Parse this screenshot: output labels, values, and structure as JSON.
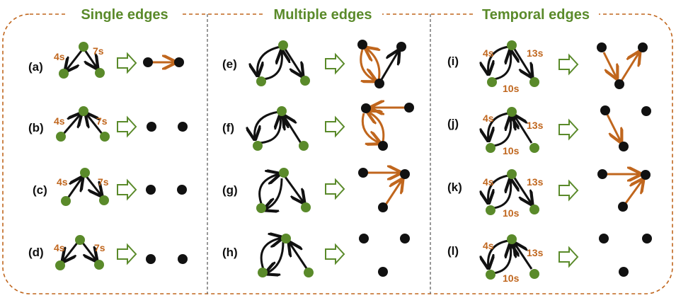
{
  "sections": [
    {
      "title": "Single edges"
    },
    {
      "title": "Multiple edges"
    },
    {
      "title": "Temporal edges"
    }
  ],
  "panels": [
    {
      "label": "(a)",
      "times": [
        "4s",
        "7s"
      ]
    },
    {
      "label": "(b)",
      "times": [
        "4s",
        "7s"
      ]
    },
    {
      "label": "(c)",
      "times": [
        "4s",
        "7s"
      ]
    },
    {
      "label": "(d)",
      "times": [
        "4s",
        "7s"
      ]
    },
    {
      "label": "(e)",
      "times": []
    },
    {
      "label": "(f)",
      "times": []
    },
    {
      "label": "(g)",
      "times": []
    },
    {
      "label": "(h)",
      "times": []
    },
    {
      "label": "(i)",
      "times": [
        "4s",
        "13s",
        "10s"
      ]
    },
    {
      "label": "(j)",
      "times": [
        "4s",
        "13s",
        "10s"
      ]
    },
    {
      "label": "(k)",
      "times": [
        "4s",
        "13s",
        "10s"
      ]
    },
    {
      "label": "(l)",
      "times": [
        "4s",
        "13s",
        "10s"
      ]
    }
  ],
  "colors": {
    "green": "#5a8a2a",
    "orange": "#c0661d",
    "black": "#111111",
    "frame": "#c0661d"
  }
}
